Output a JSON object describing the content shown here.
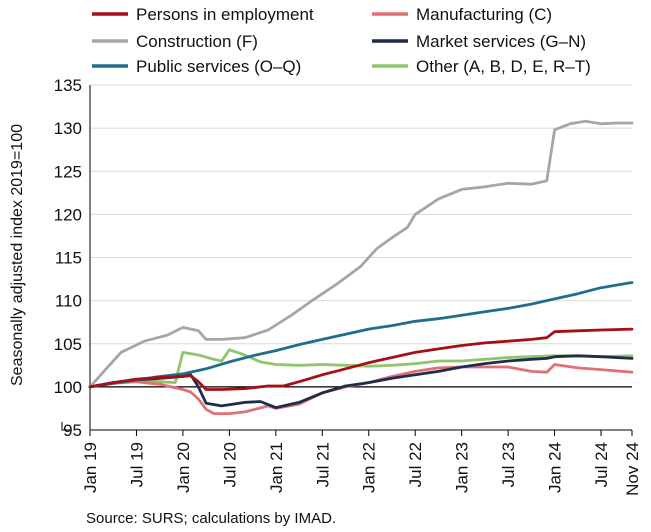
{
  "chart_data": {
    "type": "line",
    "title": "",
    "ylabel": "Seasonally adjusted index 2019=100",
    "xlabel": "",
    "source": "Source: SURS; calculations by IMAD.",
    "ylim": [
      95,
      135
    ],
    "y_ticks": [
      95,
      100,
      105,
      110,
      115,
      120,
      125,
      130,
      135
    ],
    "baseline": 100,
    "x_start": "2019-01",
    "x_end": "2024-11",
    "x_ticks": [
      {
        "label": "Jan 19",
        "month": "2019-01"
      },
      {
        "label": "Jul 19",
        "month": "2019-07"
      },
      {
        "label": "Jan 20",
        "month": "2020-01"
      },
      {
        "label": "Jul 20",
        "month": "2020-07"
      },
      {
        "label": "Jan 21",
        "month": "2021-01"
      },
      {
        "label": "Jul 21",
        "month": "2021-07"
      },
      {
        "label": "Jan 22",
        "month": "2022-01"
      },
      {
        "label": "Jul 22",
        "month": "2022-07"
      },
      {
        "label": "Jan 23",
        "month": "2023-01"
      },
      {
        "label": "Jul 23",
        "month": "2023-07"
      },
      {
        "label": "Jan 24",
        "month": "2024-01"
      },
      {
        "label": "Jul 24",
        "month": "2024-07"
      },
      {
        "label": "Nov 24",
        "month": "2024-11"
      }
    ],
    "legend_placement": "top",
    "series": [
      {
        "name": "Persons in employment",
        "color": "#a50f15",
        "points": [
          [
            "2019-01",
            100.0
          ],
          [
            "2019-04",
            100.5
          ],
          [
            "2019-07",
            100.9
          ],
          [
            "2019-10",
            101.1
          ],
          [
            "2020-01",
            101.2
          ],
          [
            "2020-02",
            101.3
          ],
          [
            "2020-03",
            100.6
          ],
          [
            "2020-04",
            99.7
          ],
          [
            "2020-06",
            99.7
          ],
          [
            "2020-09",
            99.8
          ],
          [
            "2020-12",
            100.1
          ],
          [
            "2021-02",
            100.1
          ],
          [
            "2021-04",
            100.6
          ],
          [
            "2021-07",
            101.4
          ],
          [
            "2021-10",
            102.1
          ],
          [
            "2022-01",
            102.8
          ],
          [
            "2022-04",
            103.4
          ],
          [
            "2022-07",
            104.0
          ],
          [
            "2022-10",
            104.4
          ],
          [
            "2023-01",
            104.8
          ],
          [
            "2023-04",
            105.1
          ],
          [
            "2023-07",
            105.3
          ],
          [
            "2023-10",
            105.5
          ],
          [
            "2023-12",
            105.7
          ],
          [
            "2024-01",
            106.4
          ],
          [
            "2024-04",
            106.5
          ],
          [
            "2024-07",
            106.6
          ],
          [
            "2024-11",
            106.7
          ]
        ]
      },
      {
        "name": "Manufacturing (C)",
        "color": "#e07075",
        "points": [
          [
            "2019-01",
            100.0
          ],
          [
            "2019-04",
            100.4
          ],
          [
            "2019-07",
            100.6
          ],
          [
            "2019-10",
            100.3
          ],
          [
            "2020-01",
            99.7
          ],
          [
            "2020-02",
            99.4
          ],
          [
            "2020-03",
            98.6
          ],
          [
            "2020-04",
            97.4
          ],
          [
            "2020-05",
            96.9
          ],
          [
            "2020-07",
            96.9
          ],
          [
            "2020-09",
            97.1
          ],
          [
            "2020-12",
            97.8
          ],
          [
            "2021-01",
            97.5
          ],
          [
            "2021-04",
            98.0
          ],
          [
            "2021-07",
            99.3
          ],
          [
            "2021-10",
            100.0
          ],
          [
            "2022-01",
            100.5
          ],
          [
            "2022-04",
            101.2
          ],
          [
            "2022-07",
            101.8
          ],
          [
            "2022-10",
            102.2
          ],
          [
            "2023-01",
            102.3
          ],
          [
            "2023-04",
            102.3
          ],
          [
            "2023-07",
            102.3
          ],
          [
            "2023-10",
            101.8
          ],
          [
            "2023-12",
            101.7
          ],
          [
            "2024-01",
            102.6
          ],
          [
            "2024-04",
            102.2
          ],
          [
            "2024-07",
            102.0
          ],
          [
            "2024-11",
            101.7
          ]
        ]
      },
      {
        "name": "Construction (F)",
        "color": "#a6a6a6",
        "points": [
          [
            "2019-01",
            100.0
          ],
          [
            "2019-03",
            102.0
          ],
          [
            "2019-05",
            104.0
          ],
          [
            "2019-08",
            105.3
          ],
          [
            "2019-11",
            106.0
          ],
          [
            "2020-01",
            106.9
          ],
          [
            "2020-03",
            106.5
          ],
          [
            "2020-04",
            105.5
          ],
          [
            "2020-06",
            105.5
          ],
          [
            "2020-09",
            105.7
          ],
          [
            "2020-12",
            106.6
          ],
          [
            "2021-03",
            108.3
          ],
          [
            "2021-06",
            110.2
          ],
          [
            "2021-09",
            112.0
          ],
          [
            "2021-12",
            114.0
          ],
          [
            "2022-02",
            116.0
          ],
          [
            "2022-04",
            117.3
          ],
          [
            "2022-06",
            118.5
          ],
          [
            "2022-07",
            120.0
          ],
          [
            "2022-10",
            121.8
          ],
          [
            "2023-01",
            122.9
          ],
          [
            "2023-04",
            123.2
          ],
          [
            "2023-07",
            123.6
          ],
          [
            "2023-10",
            123.5
          ],
          [
            "2023-12",
            123.9
          ],
          [
            "2024-01",
            129.8
          ],
          [
            "2024-03",
            130.5
          ],
          [
            "2024-05",
            130.8
          ],
          [
            "2024-07",
            130.5
          ],
          [
            "2024-09",
            130.6
          ],
          [
            "2024-11",
            130.6
          ]
        ]
      },
      {
        "name": "Market services (G–N)",
        "color": "#1f2d4d",
        "points": [
          [
            "2019-01",
            100.0
          ],
          [
            "2019-04",
            100.5
          ],
          [
            "2019-07",
            100.8
          ],
          [
            "2019-10",
            101.0
          ],
          [
            "2020-01",
            101.2
          ],
          [
            "2020-02",
            101.4
          ],
          [
            "2020-03",
            100.0
          ],
          [
            "2020-04",
            98.1
          ],
          [
            "2020-06",
            97.8
          ],
          [
            "2020-09",
            98.2
          ],
          [
            "2020-11",
            98.3
          ],
          [
            "2021-01",
            97.6
          ],
          [
            "2021-04",
            98.2
          ],
          [
            "2021-07",
            99.3
          ],
          [
            "2021-10",
            100.1
          ],
          [
            "2022-01",
            100.5
          ],
          [
            "2022-04",
            101.0
          ],
          [
            "2022-07",
            101.4
          ],
          [
            "2022-10",
            101.8
          ],
          [
            "2023-01",
            102.3
          ],
          [
            "2023-04",
            102.7
          ],
          [
            "2023-07",
            103.0
          ],
          [
            "2023-10",
            103.2
          ],
          [
            "2023-12",
            103.3
          ],
          [
            "2024-01",
            103.5
          ],
          [
            "2024-04",
            103.6
          ],
          [
            "2024-07",
            103.5
          ],
          [
            "2024-11",
            103.3
          ]
        ]
      },
      {
        "name": "Public services (O–Q)",
        "color": "#1f6e8c",
        "points": [
          [
            "2019-01",
            100.0
          ],
          [
            "2019-04",
            100.4
          ],
          [
            "2019-07",
            100.8
          ],
          [
            "2019-10",
            101.2
          ],
          [
            "2020-01",
            101.5
          ],
          [
            "2020-04",
            102.1
          ],
          [
            "2020-07",
            102.9
          ],
          [
            "2020-10",
            103.6
          ],
          [
            "2021-01",
            104.2
          ],
          [
            "2021-04",
            104.9
          ],
          [
            "2021-07",
            105.5
          ],
          [
            "2021-10",
            106.1
          ],
          [
            "2022-01",
            106.7
          ],
          [
            "2022-04",
            107.1
          ],
          [
            "2022-07",
            107.6
          ],
          [
            "2022-10",
            107.9
          ],
          [
            "2023-01",
            108.3
          ],
          [
            "2023-04",
            108.7
          ],
          [
            "2023-07",
            109.1
          ],
          [
            "2023-10",
            109.6
          ],
          [
            "2024-01",
            110.2
          ],
          [
            "2024-04",
            110.8
          ],
          [
            "2024-07",
            111.5
          ],
          [
            "2024-11",
            112.1
          ]
        ]
      },
      {
        "name": "Other (A, B, D, E, R–T)",
        "color": "#8fc56d",
        "points": [
          [
            "2019-01",
            100.0
          ],
          [
            "2019-04",
            100.5
          ],
          [
            "2019-07",
            100.7
          ],
          [
            "2019-10",
            100.6
          ],
          [
            "2019-12",
            100.5
          ],
          [
            "2020-01",
            104.0
          ],
          [
            "2020-03",
            103.7
          ],
          [
            "2020-05",
            103.2
          ],
          [
            "2020-06",
            103.0
          ],
          [
            "2020-07",
            104.3
          ],
          [
            "2020-09",
            103.7
          ],
          [
            "2020-11",
            102.9
          ],
          [
            "2021-01",
            102.6
          ],
          [
            "2021-04",
            102.5
          ],
          [
            "2021-07",
            102.6
          ],
          [
            "2021-10",
            102.5
          ],
          [
            "2022-01",
            102.4
          ],
          [
            "2022-04",
            102.5
          ],
          [
            "2022-07",
            102.7
          ],
          [
            "2022-10",
            103.0
          ],
          [
            "2023-01",
            103.0
          ],
          [
            "2023-04",
            103.2
          ],
          [
            "2023-07",
            103.4
          ],
          [
            "2023-10",
            103.5
          ],
          [
            "2024-01",
            103.6
          ],
          [
            "2024-04",
            103.6
          ],
          [
            "2024-07",
            103.5
          ],
          [
            "2024-11",
            103.6
          ]
        ]
      }
    ]
  }
}
